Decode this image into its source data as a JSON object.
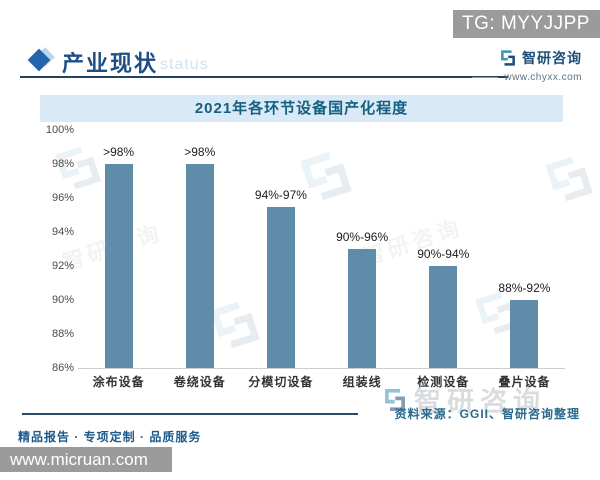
{
  "tg_badge": {
    "text": "TG: MYYJJPP"
  },
  "header": {
    "title": "产业现状",
    "watermark_text": "status",
    "logo": {
      "name": "智研咨询",
      "url": "www.chyxx.com"
    }
  },
  "chart_data": {
    "type": "bar",
    "title": "2021年各环节设备国产化程度",
    "categories": [
      "涂布设备",
      "卷绕设备",
      "分模切设备",
      "组装线",
      "检测设备",
      "叠片设备"
    ],
    "values": [
      98,
      98,
      95.5,
      93,
      92,
      90
    ],
    "value_labels": [
      ">98%",
      ">98%",
      "94%-97%",
      "90%-96%",
      "90%-94%",
      "88%-92%"
    ],
    "xlabel": "",
    "ylabel": "",
    "ylim": [
      86,
      100
    ],
    "ytick_step": 2,
    "tick_suffix": "%",
    "grid": false,
    "legend_position": "none",
    "bar_color": "#5f8da9"
  },
  "source": {
    "text": "资料来源：GGII、智研咨询整理"
  },
  "footer": {
    "slogan": "精品报告 · 专项定制 · 品质服务",
    "site": "www.micruan.com"
  },
  "watermark": {
    "logo_text": "智研咨询"
  }
}
